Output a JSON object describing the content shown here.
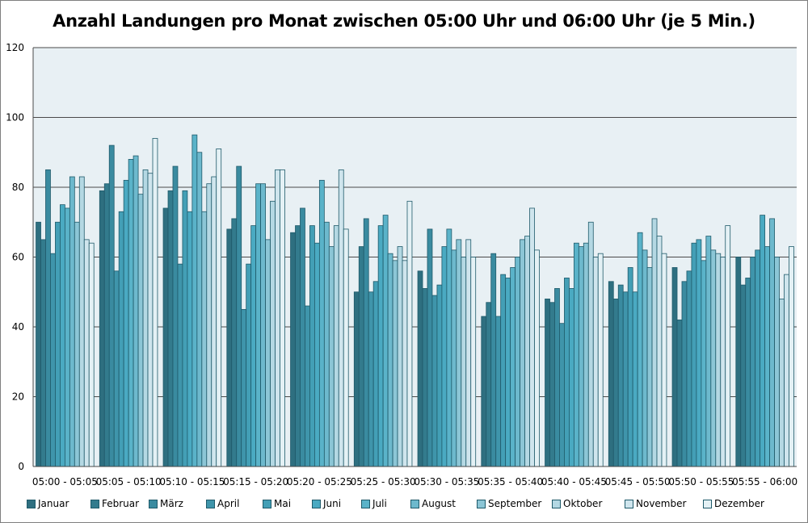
{
  "chart_data": {
    "type": "bar",
    "title": "Anzahl Landungen pro Monat zwischen 05:00 Uhr und 06:00 Uhr (je 5 Min.)",
    "xlabel": "",
    "ylabel": "",
    "ylim": [
      0,
      120
    ],
    "yticks": [
      0,
      20,
      40,
      60,
      80,
      100,
      120
    ],
    "grid": true,
    "legend_position": "bottom",
    "categories": [
      "05:00 - 05:05",
      "05:05 - 05:10",
      "05:10 - 05:15",
      "05:15 - 05:20",
      "05:20 - 05:25",
      "05:25 - 05:30",
      "05:30 - 05:35",
      "05:35 - 05:40",
      "05:40 - 05:45",
      "05:45 - 05:50",
      "05:50 - 05:55",
      "05:55 - 06:00"
    ],
    "series": [
      {
        "name": "Januar",
        "color": "#2e6f80",
        "values": [
          70,
          79,
          74,
          68,
          67,
          50,
          56,
          43,
          48,
          53,
          57,
          60
        ]
      },
      {
        "name": "Februar",
        "color": "#337b8d",
        "values": [
          65,
          81,
          79,
          71,
          69,
          63,
          51,
          47,
          47,
          48,
          42,
          52
        ]
      },
      {
        "name": "März",
        "color": "#3a8ba0",
        "values": [
          85,
          92,
          86,
          86,
          74,
          71,
          68,
          61,
          51,
          52,
          53,
          54
        ]
      },
      {
        "name": "April",
        "color": "#3f95ab",
        "values": [
          61,
          56,
          58,
          45,
          46,
          50,
          49,
          43,
          41,
          50,
          56,
          60
        ]
      },
      {
        "name": "Mai",
        "color": "#439fb6",
        "values": [
          70,
          73,
          79,
          58,
          69,
          53,
          52,
          55,
          54,
          57,
          64,
          62
        ]
      },
      {
        "name": "Juni",
        "color": "#4aaac2",
        "values": [
          75,
          82,
          73,
          69,
          64,
          69,
          63,
          54,
          51,
          50,
          65,
          72
        ]
      },
      {
        "name": "Juli",
        "color": "#5ab3c9",
        "values": [
          74,
          88,
          95,
          81,
          82,
          72,
          68,
          57,
          64,
          67,
          59,
          63
        ]
      },
      {
        "name": "August",
        "color": "#6db9cd",
        "values": [
          83,
          89,
          90,
          81,
          70,
          61,
          62,
          60,
          63,
          62,
          66,
          71
        ]
      },
      {
        "name": "September",
        "color": "#8cc6d6",
        "values": [
          70,
          78,
          73,
          65,
          63,
          59,
          65,
          65,
          64,
          57,
          62,
          60
        ]
      },
      {
        "name": "Oktober",
        "color": "#b4d8e3",
        "values": [
          83,
          85,
          81,
          76,
          69,
          63,
          60,
          66,
          70,
          71,
          61,
          48
        ]
      },
      {
        "name": "November",
        "color": "#cfe5ed",
        "values": [
          65,
          84,
          83,
          85,
          85,
          59,
          65,
          74,
          60,
          66,
          60,
          55
        ]
      },
      {
        "name": "Dezember",
        "color": "#e4f1f5",
        "values": [
          64,
          94,
          91,
          85,
          68,
          76,
          60,
          62,
          61,
          61,
          69,
          63
        ]
      }
    ]
  }
}
